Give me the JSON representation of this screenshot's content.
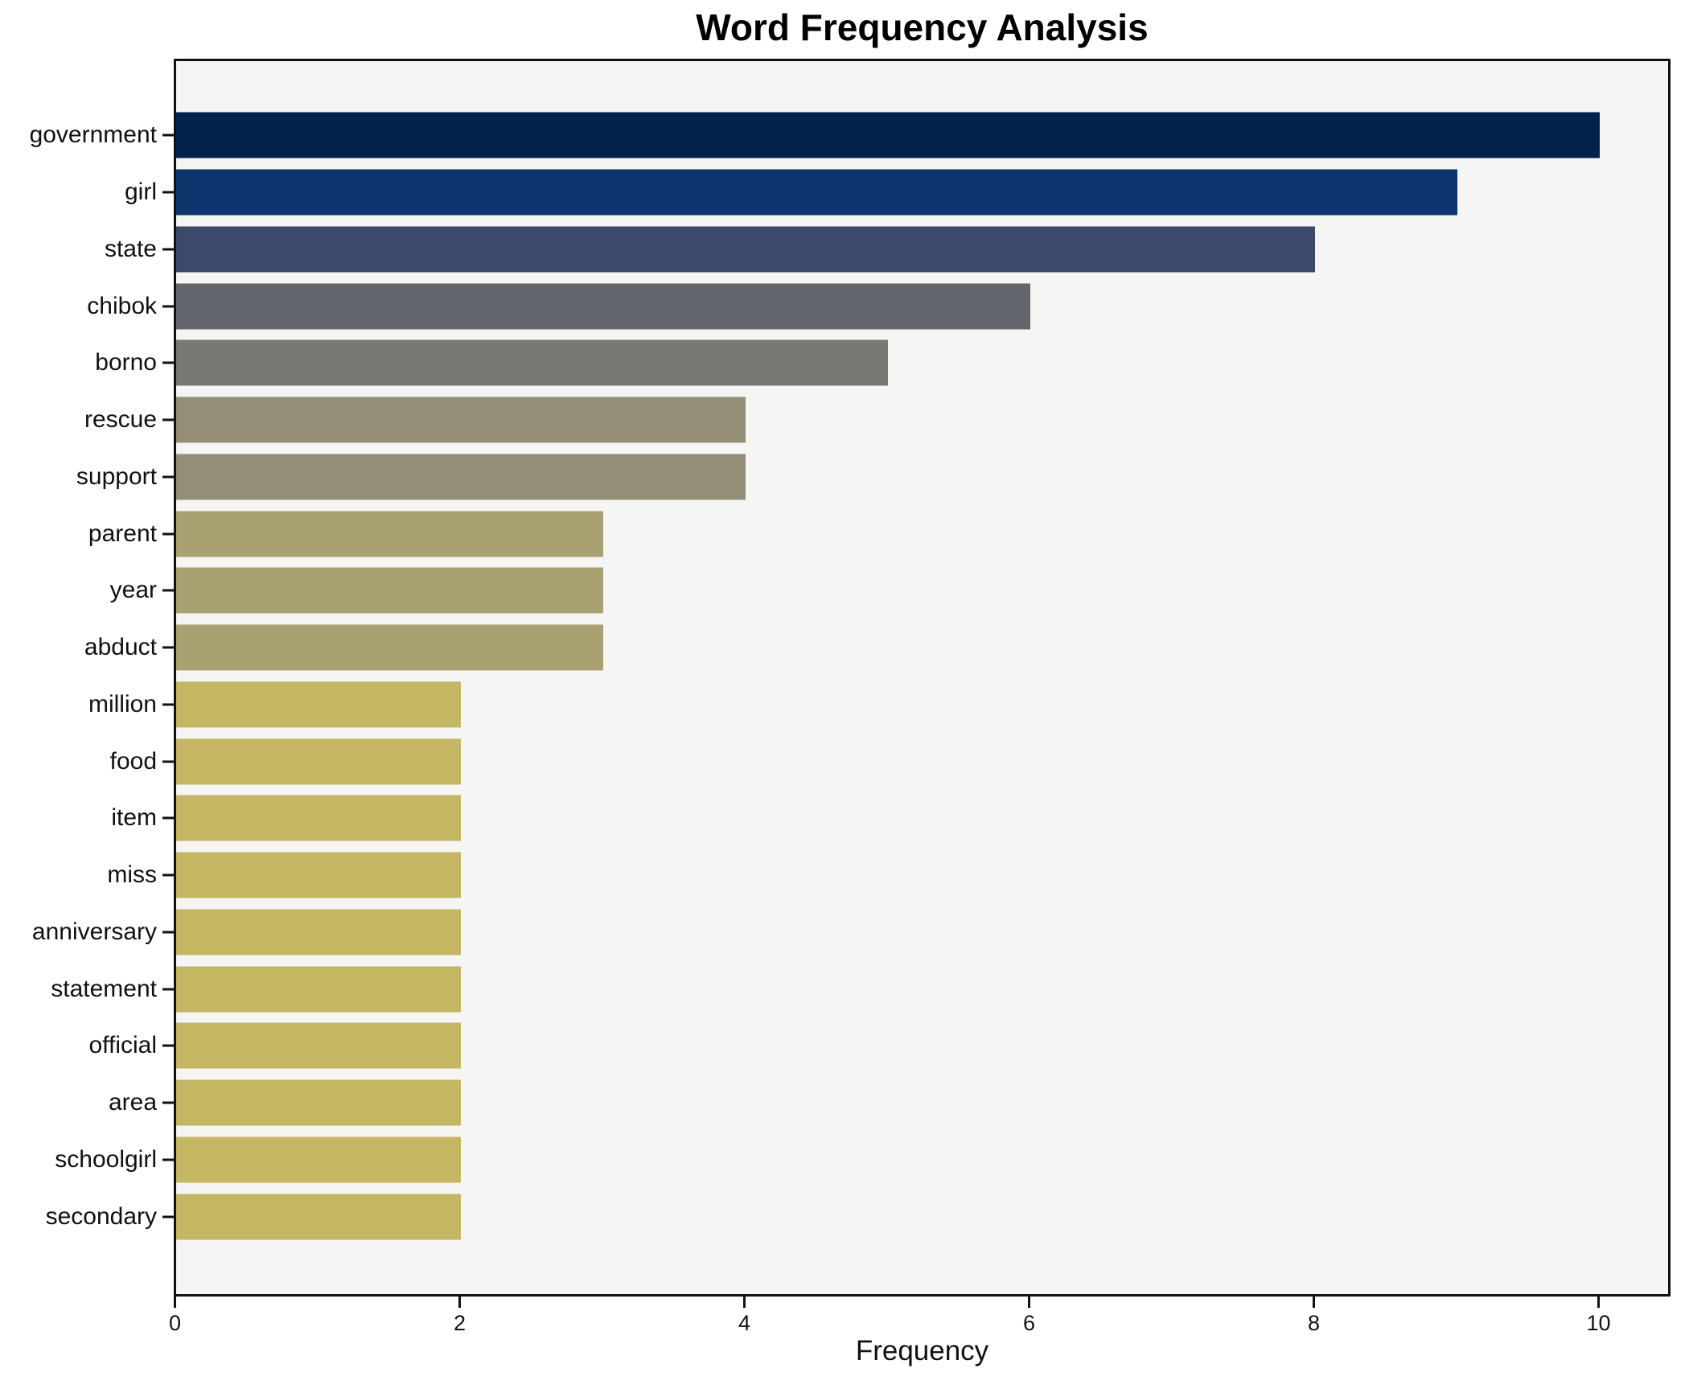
{
  "figure": {
    "background": "#ffffff",
    "plot_background": "#f5f5f4",
    "spine_color": "#111111"
  },
  "chart_data": {
    "type": "bar",
    "orientation": "horizontal",
    "title": "Word Frequency Analysis",
    "xlabel": "Frequency",
    "ylabel": "",
    "categories": [
      "government",
      "girl",
      "state",
      "chibok",
      "borno",
      "rescue",
      "support",
      "parent",
      "year",
      "abduct",
      "million",
      "food",
      "item",
      "miss",
      "anniversary",
      "statement",
      "official",
      "area",
      "schoolgirl",
      "secondary"
    ],
    "values": [
      10,
      9,
      8,
      6,
      5,
      4,
      4,
      3,
      3,
      3,
      2,
      2,
      2,
      2,
      2,
      2,
      2,
      2,
      2,
      2
    ],
    "bar_colors": [
      "#02214d",
      "#0d346d",
      "#3b4a6b",
      "#63666d",
      "#797874",
      "#948e76",
      "#948e76",
      "#aaa173",
      "#aaa173",
      "#aaa173",
      "#c4b663",
      "#c4b663",
      "#c4b663",
      "#c4b663",
      "#c4b663",
      "#c4b663",
      "#c4b663",
      "#c4b663",
      "#c4b663",
      "#c4b663"
    ],
    "xticks": [
      0,
      2,
      4,
      6,
      8,
      10
    ],
    "xlim": [
      0,
      10.48
    ],
    "grid": false,
    "legend": null
  }
}
